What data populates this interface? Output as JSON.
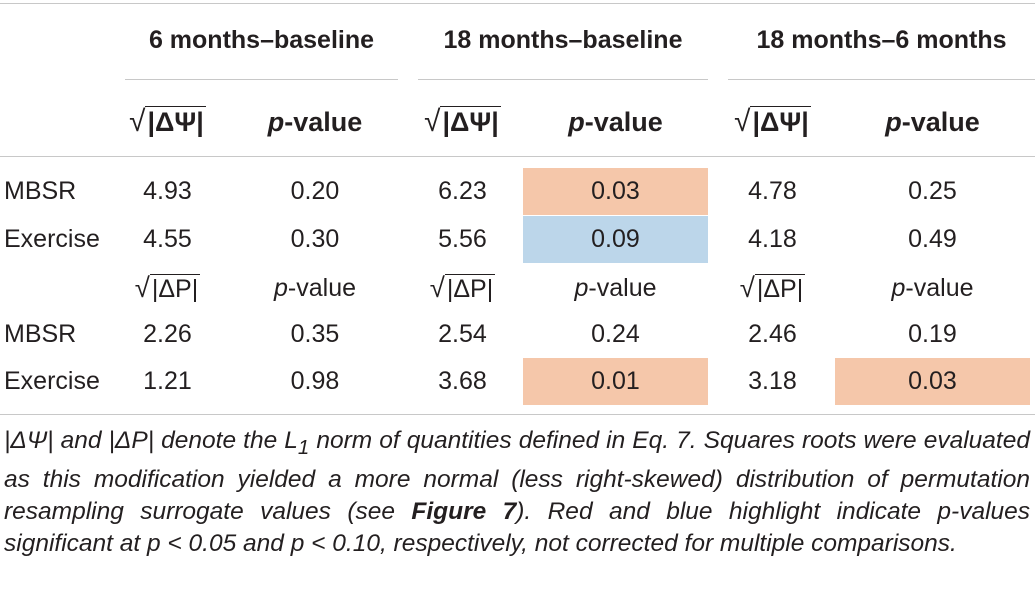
{
  "groups": [
    "6 months–baseline",
    "18 months–baseline",
    "18 months–6 months"
  ],
  "header1": {
    "delta_label": "|ΔΨ|",
    "p_prefix": "p",
    "p_suffix": "-value"
  },
  "header2": {
    "delta_label": "|ΔP|",
    "p_prefix": "p",
    "p_suffix": "-value"
  },
  "rows1": [
    {
      "label": "MBSR",
      "values": [
        "4.93",
        "0.20",
        "6.23",
        "0.03",
        "4.78",
        "0.25"
      ]
    },
    {
      "label": "Exercise",
      "values": [
        "4.55",
        "0.30",
        "5.56",
        "0.09",
        "4.18",
        "0.49"
      ]
    }
  ],
  "rows2": [
    {
      "label": "MBSR",
      "values": [
        "2.26",
        "0.35",
        "2.54",
        "0.24",
        "2.46",
        "0.19"
      ]
    },
    {
      "label": "Exercise",
      "values": [
        "1.21",
        "0.98",
        "3.68",
        "0.01",
        "3.18",
        "0.03"
      ]
    }
  ],
  "colors": {
    "red_highlight": "#f5c7aa",
    "blue_highlight": "#bcd6ea",
    "rule": "#c8c8c8"
  },
  "footnote": {
    "part1": "|ΔΨ| and |ΔP| denote the L",
    "subscript": "1",
    "part2": " norm of quantities defined in Eq. 7. Squares roots were evaluated as this modification yielded a more normal (less right-skewed) distribution of permutation resampling surrogate values (see ",
    "figure_ref": "Figure 7",
    "part3": "). Red and blue highlight indicate p-values significant at p < 0.05 and p < 0.10, respectively, not corrected for multiple comparisons."
  }
}
